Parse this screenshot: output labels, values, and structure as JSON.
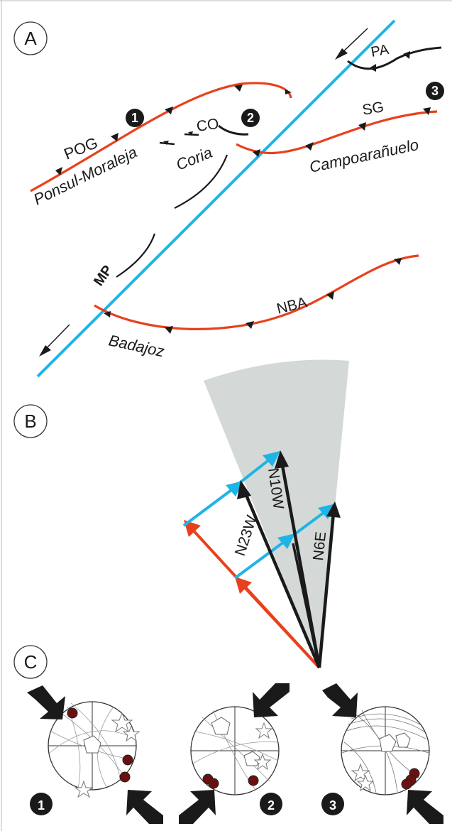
{
  "panels": {
    "a": "A",
    "b": "B",
    "c": "C"
  },
  "faults": {
    "pog": "POG",
    "ponsul": "Ponsul-Moraleja",
    "co": "CO",
    "coria": "Coria",
    "pa": "PA",
    "sg": "SG",
    "campo": "Campoarañuelo",
    "mp": "MP",
    "nba": "NBA",
    "badajoz": "Badajoz"
  },
  "vectors": {
    "v1": "N23W",
    "v2": "N10W",
    "v3": "N6E"
  },
  "markers": {
    "m1": "1",
    "m2": "2",
    "m3": "3"
  },
  "colors": {
    "thrust": "#e8401c",
    "strike_slip": "#1eb4e6",
    "minor_fault": "#1a1a1a",
    "sector": "#d4d8d6"
  }
}
